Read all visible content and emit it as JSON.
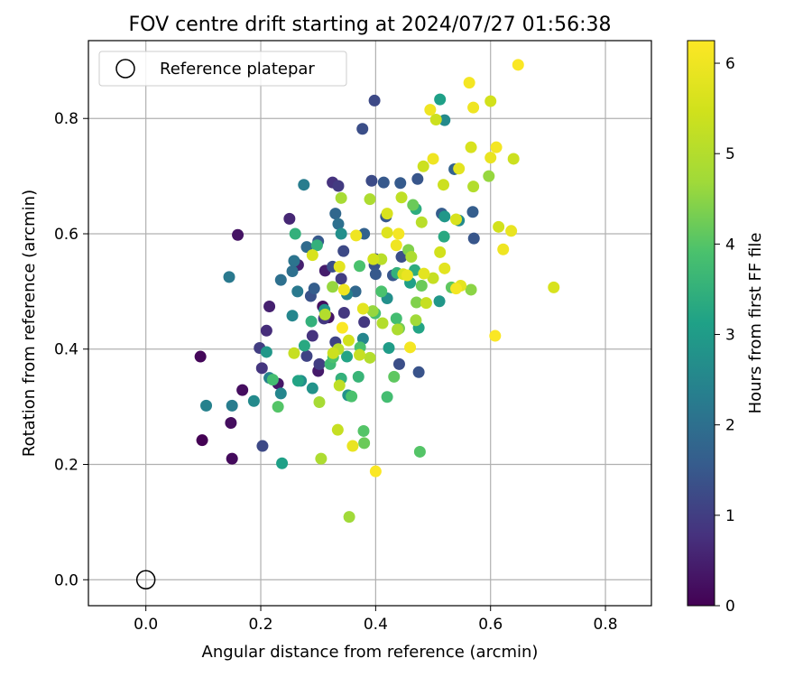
{
  "chart_data": {
    "type": "scatter",
    "title": "FOV centre drift starting at 2024/07/27 01:56:38",
    "xlabel": "Angular distance from reference (arcmin)",
    "ylabel": "Rotation from reference (arcmin)",
    "colorbar_label": "Hours from first FF file",
    "xlim": [
      -0.1,
      0.88
    ],
    "ylim": [
      -0.045,
      0.935
    ],
    "x_ticks": [
      0.0,
      0.2,
      0.4,
      0.6,
      0.8
    ],
    "x_tick_labels": [
      "0.0",
      "0.2",
      "0.4",
      "0.6",
      "0.8"
    ],
    "y_ticks": [
      0.0,
      0.2,
      0.4,
      0.6,
      0.8
    ],
    "y_tick_labels": [
      "0.0",
      "0.2",
      "0.4",
      "0.6",
      "0.8"
    ],
    "colorbar_range": [
      0,
      6.25
    ],
    "colorbar_ticks": [
      0,
      1,
      2,
      3,
      4,
      5,
      6
    ],
    "colorbar_tick_labels": [
      "0",
      "1",
      "2",
      "3",
      "4",
      "5",
      "6"
    ],
    "colormap": "viridis",
    "grid": true,
    "legend": {
      "placement": "top-left",
      "entries": [
        "Reference platepar"
      ]
    },
    "reference_point": {
      "x": 0.0,
      "y": 0.0
    },
    "points": [
      [
        0.098,
        0.242,
        0.0
      ],
      [
        0.095,
        0.387,
        0.1
      ],
      [
        0.148,
        0.272,
        0.2
      ],
      [
        0.15,
        0.21,
        0.15
      ],
      [
        0.16,
        0.598,
        0.3
      ],
      [
        0.168,
        0.329,
        0.2
      ],
      [
        0.21,
        0.432,
        0.7
      ],
      [
        0.215,
        0.474,
        0.5
      ],
      [
        0.23,
        0.34,
        0.35
      ],
      [
        0.25,
        0.626,
        0.6
      ],
      [
        0.265,
        0.546,
        0.5
      ],
      [
        0.3,
        0.362,
        0.4
      ],
      [
        0.308,
        0.474,
        0.2
      ],
      [
        0.312,
        0.536,
        0.45
      ],
      [
        0.318,
        0.455,
        0.3
      ],
      [
        0.29,
        0.423,
        0.8
      ],
      [
        0.302,
        0.374,
        1.0
      ],
      [
        0.198,
        0.402,
        1.0
      ],
      [
        0.202,
        0.367,
        0.85
      ],
      [
        0.203,
        0.232,
        1.2
      ],
      [
        0.28,
        0.388,
        1.1
      ],
      [
        0.3,
        0.587,
        1.5
      ],
      [
        0.31,
        0.453,
        0.9
      ],
      [
        0.325,
        0.689,
        0.8
      ],
      [
        0.335,
        0.683,
        0.95
      ],
      [
        0.398,
        0.831,
        1.2
      ],
      [
        0.377,
        0.782,
        1.3
      ],
      [
        0.325,
        0.543,
        1.3
      ],
      [
        0.33,
        0.412,
        1.1
      ],
      [
        0.34,
        0.522,
        1.0
      ],
      [
        0.287,
        0.492,
        1.35
      ],
      [
        0.293,
        0.505,
        1.6
      ],
      [
        0.345,
        0.463,
        0.9
      ],
      [
        0.344,
        0.57,
        1.2
      ],
      [
        0.38,
        0.447,
        0.9
      ],
      [
        0.393,
        0.692,
        1.25
      ],
      [
        0.414,
        0.689,
        1.5
      ],
      [
        0.443,
        0.688,
        1.55
      ],
      [
        0.43,
        0.528,
        1.45
      ],
      [
        0.445,
        0.56,
        1.3
      ],
      [
        0.418,
        0.63,
        1.5
      ],
      [
        0.4,
        0.556,
        1.2
      ],
      [
        0.398,
        0.546,
        1.4
      ],
      [
        0.441,
        0.374,
        1.3
      ],
      [
        0.475,
        0.36,
        1.4
      ],
      [
        0.473,
        0.695,
        1.45
      ],
      [
        0.515,
        0.635,
        1.6
      ],
      [
        0.537,
        0.712,
        1.7
      ],
      [
        0.569,
        0.638,
        1.6
      ],
      [
        0.571,
        0.592,
        1.45
      ],
      [
        0.365,
        0.5,
        1.8
      ],
      [
        0.38,
        0.6,
        1.7
      ],
      [
        0.4,
        0.53,
        1.5
      ],
      [
        0.33,
        0.635,
        1.8
      ],
      [
        0.335,
        0.617,
        2.0
      ],
      [
        0.28,
        0.577,
        1.9
      ],
      [
        0.275,
        0.685,
        2.3
      ],
      [
        0.258,
        0.553,
        2.1
      ],
      [
        0.255,
        0.535,
        2.0
      ],
      [
        0.264,
        0.5,
        2.2
      ],
      [
        0.235,
        0.52,
        2.0
      ],
      [
        0.145,
        0.525,
        2.2
      ],
      [
        0.105,
        0.302,
        2.4
      ],
      [
        0.15,
        0.302,
        2.3
      ],
      [
        0.188,
        0.31,
        2.6
      ],
      [
        0.21,
        0.395,
        2.9
      ],
      [
        0.215,
        0.35,
        2.4
      ],
      [
        0.235,
        0.323,
        2.5
      ],
      [
        0.255,
        0.458,
        2.5
      ],
      [
        0.27,
        0.345,
        2.7
      ],
      [
        0.29,
        0.332,
        2.8
      ],
      [
        0.311,
        0.468,
        2.8
      ],
      [
        0.34,
        0.6,
        2.7
      ],
      [
        0.35,
        0.495,
        2.4
      ],
      [
        0.352,
        0.32,
        2.8
      ],
      [
        0.378,
        0.418,
        2.5
      ],
      [
        0.42,
        0.488,
        2.7
      ],
      [
        0.423,
        0.402,
        3.0
      ],
      [
        0.512,
        0.833,
        3.1
      ],
      [
        0.52,
        0.63,
        2.9
      ],
      [
        0.52,
        0.797,
        2.6
      ],
      [
        0.511,
        0.483,
        2.9
      ],
      [
        0.519,
        0.595,
        3.3
      ],
      [
        0.545,
        0.623,
        2.6
      ],
      [
        0.46,
        0.515,
        3.1
      ],
      [
        0.468,
        0.537,
        3.4
      ],
      [
        0.475,
        0.437,
        3.2
      ],
      [
        0.47,
        0.643,
        3.4
      ],
      [
        0.437,
        0.532,
        3.5
      ],
      [
        0.26,
        0.6,
        3.5
      ],
      [
        0.276,
        0.406,
        3.3
      ],
      [
        0.288,
        0.448,
        3.5
      ],
      [
        0.298,
        0.58,
        3.5
      ],
      [
        0.237,
        0.202,
        3.1
      ],
      [
        0.265,
        0.345,
        3.2
      ],
      [
        0.221,
        0.347,
        3.8
      ],
      [
        0.23,
        0.3,
        4.0
      ],
      [
        0.321,
        0.374,
        3.7
      ],
      [
        0.326,
        0.386,
        3.9
      ],
      [
        0.34,
        0.349,
        3.5
      ],
      [
        0.35,
        0.387,
        3.2
      ],
      [
        0.358,
        0.318,
        3.9
      ],
      [
        0.372,
        0.544,
        3.9
      ],
      [
        0.37,
        0.352,
        3.6
      ],
      [
        0.373,
        0.403,
        3.9
      ],
      [
        0.379,
        0.258,
        4.0
      ],
      [
        0.38,
        0.237,
        4.2
      ],
      [
        0.399,
        0.462,
        3.8
      ],
      [
        0.41,
        0.5,
        3.9
      ],
      [
        0.42,
        0.317,
        3.8
      ],
      [
        0.432,
        0.352,
        4.1
      ],
      [
        0.441,
        0.436,
        4.3
      ],
      [
        0.436,
        0.453,
        3.8
      ],
      [
        0.457,
        0.572,
        4.4
      ],
      [
        0.465,
        0.65,
        4.2
      ],
      [
        0.471,
        0.481,
        4.4
      ],
      [
        0.477,
        0.222,
        4.0
      ],
      [
        0.48,
        0.51,
        4.2
      ],
      [
        0.532,
        0.507,
        4.1
      ],
      [
        0.566,
        0.503,
        4.5
      ],
      [
        0.597,
        0.7,
        4.6
      ],
      [
        0.354,
        0.109,
        4.7
      ],
      [
        0.302,
        0.308,
        4.8
      ],
      [
        0.305,
        0.21,
        4.9
      ],
      [
        0.325,
        0.508,
        4.6
      ],
      [
        0.34,
        0.662,
        4.8
      ],
      [
        0.39,
        0.66,
        4.9
      ],
      [
        0.39,
        0.385,
        5.0
      ],
      [
        0.395,
        0.466,
        4.6
      ],
      [
        0.41,
        0.556,
        5.1
      ],
      [
        0.412,
        0.445,
        5.0
      ],
      [
        0.438,
        0.434,
        4.9
      ],
      [
        0.445,
        0.663,
        5.2
      ],
      [
        0.462,
        0.56,
        4.9
      ],
      [
        0.47,
        0.45,
        4.7
      ],
      [
        0.48,
        0.62,
        5.1
      ],
      [
        0.483,
        0.717,
        5.4
      ],
      [
        0.488,
        0.48,
        5.3
      ],
      [
        0.5,
        0.523,
        5.3
      ],
      [
        0.505,
        0.798,
        5.4
      ],
      [
        0.512,
        0.568,
        5.5
      ],
      [
        0.518,
        0.685,
        5.4
      ],
      [
        0.54,
        0.625,
        5.6
      ],
      [
        0.548,
        0.51,
        5.8
      ],
      [
        0.566,
        0.75,
        5.6
      ],
      [
        0.57,
        0.682,
        5.0
      ],
      [
        0.6,
        0.83,
        5.5
      ],
      [
        0.614,
        0.612,
        5.5
      ],
      [
        0.64,
        0.73,
        5.4
      ],
      [
        0.71,
        0.507,
        5.6
      ],
      [
        0.337,
        0.543,
        5.8
      ],
      [
        0.345,
        0.503,
        6.0
      ],
      [
        0.353,
        0.415,
        5.5
      ],
      [
        0.36,
        0.232,
        5.9
      ],
      [
        0.372,
        0.39,
        5.3
      ],
      [
        0.378,
        0.47,
        5.8
      ],
      [
        0.396,
        0.556,
        5.5
      ],
      [
        0.4,
        0.188,
        6.2
      ],
      [
        0.42,
        0.602,
        5.7
      ],
      [
        0.42,
        0.635,
        5.6
      ],
      [
        0.436,
        0.58,
        6.0
      ],
      [
        0.44,
        0.6,
        6.1
      ],
      [
        0.448,
        0.53,
        5.6
      ],
      [
        0.455,
        0.528,
        5.9
      ],
      [
        0.46,
        0.403,
        6.1
      ],
      [
        0.484,
        0.531,
        5.8
      ],
      [
        0.495,
        0.815,
        6.0
      ],
      [
        0.5,
        0.73,
        6.0
      ],
      [
        0.52,
        0.54,
        5.8
      ],
      [
        0.54,
        0.505,
        6.1
      ],
      [
        0.545,
        0.713,
        5.8
      ],
      [
        0.563,
        0.862,
        6.1
      ],
      [
        0.57,
        0.819,
        6.0
      ],
      [
        0.6,
        0.732,
        5.9
      ],
      [
        0.608,
        0.423,
        6.2
      ],
      [
        0.61,
        0.75,
        6.1
      ],
      [
        0.622,
        0.573,
        6.0
      ],
      [
        0.636,
        0.605,
        5.9
      ],
      [
        0.648,
        0.893,
        6.2
      ],
      [
        0.342,
        0.437,
        6.2
      ],
      [
        0.366,
        0.597,
        6.0
      ],
      [
        0.334,
        0.26,
        5.3
      ],
      [
        0.337,
        0.337,
        5.2
      ],
      [
        0.335,
        0.4,
        5.1
      ],
      [
        0.312,
        0.46,
        5.0
      ],
      [
        0.326,
        0.393,
        5.4
      ],
      [
        0.258,
        0.393,
        5.3
      ],
      [
        0.29,
        0.563,
        5.6
      ]
    ]
  }
}
